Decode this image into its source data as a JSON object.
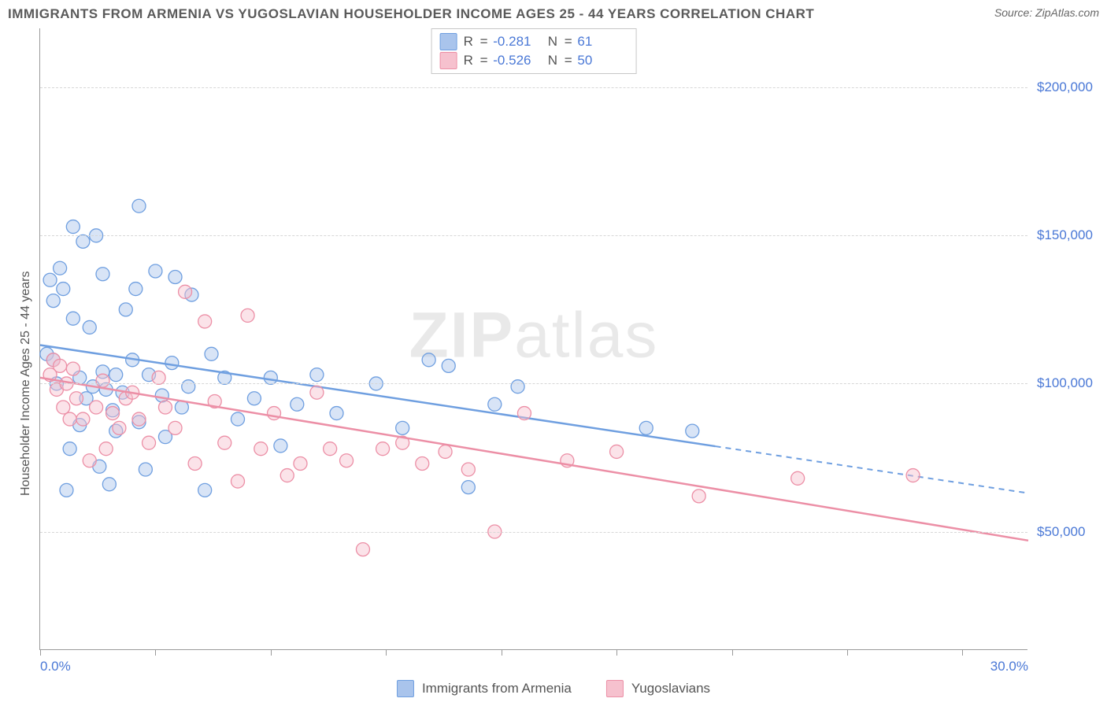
{
  "title": "IMMIGRANTS FROM ARMENIA VS YUGOSLAVIAN HOUSEHOLDER INCOME AGES 25 - 44 YEARS CORRELATION CHART",
  "source": "Source: ZipAtlas.com",
  "watermark": "ZIPatlas",
  "ylabel": "Householder Income Ages 25 - 44 years",
  "chart": {
    "type": "scatter",
    "xlim": [
      0,
      30
    ],
    "ylim": [
      10000,
      220000
    ],
    "x_tick_positions": [
      0,
      3.5,
      7,
      10.5,
      14,
      17.5,
      21,
      24.5,
      28
    ],
    "x_axis_labels": [
      {
        "pos": 0,
        "text": "0.0%"
      },
      {
        "pos": 30,
        "text": "30.0%"
      }
    ],
    "y_gridlines": [
      50000,
      100000,
      150000,
      200000
    ],
    "y_tick_labels": [
      "$50,000",
      "$100,000",
      "$150,000",
      "$200,000"
    ],
    "background_color": "#ffffff",
    "grid_color": "#d7d7d7",
    "axis_color": "#9a9a9a",
    "marker_radius": 8.5,
    "marker_opacity": 0.45,
    "series": [
      {
        "key": "armenia",
        "label": "Immigrants from Armenia",
        "color_fill": "#a9c4ec",
        "color_stroke": "#6f9fe0",
        "R": "-0.281",
        "N": "61",
        "trend": {
          "y_at_x0": 113000,
          "y_at_x30": 63000,
          "solid_until_x": 20.5
        },
        "points": [
          [
            0.2,
            110000
          ],
          [
            0.3,
            135000
          ],
          [
            0.4,
            108000
          ],
          [
            0.4,
            128000
          ],
          [
            0.5,
            100000
          ],
          [
            0.6,
            139000
          ],
          [
            0.7,
            132000
          ],
          [
            0.8,
            64000
          ],
          [
            0.9,
            78000
          ],
          [
            1.0,
            122000
          ],
          [
            1.0,
            153000
          ],
          [
            1.2,
            102000
          ],
          [
            1.2,
            86000
          ],
          [
            1.3,
            148000
          ],
          [
            1.4,
            95000
          ],
          [
            1.5,
            119000
          ],
          [
            1.6,
            99000
          ],
          [
            1.7,
            150000
          ],
          [
            1.8,
            72000
          ],
          [
            1.9,
            104000
          ],
          [
            1.9,
            137000
          ],
          [
            2.0,
            98000
          ],
          [
            2.1,
            66000
          ],
          [
            2.2,
            91000
          ],
          [
            2.3,
            84000
          ],
          [
            2.3,
            103000
          ],
          [
            2.5,
            97000
          ],
          [
            2.6,
            125000
          ],
          [
            2.8,
            108000
          ],
          [
            2.9,
            132000
          ],
          [
            3.0,
            87000
          ],
          [
            3.0,
            160000
          ],
          [
            3.2,
            71000
          ],
          [
            3.3,
            103000
          ],
          [
            3.5,
            138000
          ],
          [
            3.7,
            96000
          ],
          [
            3.8,
            82000
          ],
          [
            4.0,
            107000
          ],
          [
            4.1,
            136000
          ],
          [
            4.3,
            92000
          ],
          [
            4.5,
            99000
          ],
          [
            4.6,
            130000
          ],
          [
            5.0,
            64000
          ],
          [
            5.2,
            110000
          ],
          [
            5.6,
            102000
          ],
          [
            6.0,
            88000
          ],
          [
            6.5,
            95000
          ],
          [
            7.0,
            102000
          ],
          [
            7.3,
            79000
          ],
          [
            7.8,
            93000
          ],
          [
            8.4,
            103000
          ],
          [
            9.0,
            90000
          ],
          [
            10.2,
            100000
          ],
          [
            11.0,
            85000
          ],
          [
            11.8,
            108000
          ],
          [
            12.4,
            106000
          ],
          [
            13.0,
            65000
          ],
          [
            13.8,
            93000
          ],
          [
            14.5,
            99000
          ],
          [
            18.4,
            85000
          ],
          [
            19.8,
            84000
          ]
        ]
      },
      {
        "key": "yugoslavia",
        "label": "Yugoslavians",
        "color_fill": "#f6c1ce",
        "color_stroke": "#ec8fa6",
        "R": "-0.526",
        "N": "50",
        "trend": {
          "y_at_x0": 102000,
          "y_at_x30": 47000,
          "solid_until_x": 30
        },
        "points": [
          [
            0.3,
            103000
          ],
          [
            0.4,
            108000
          ],
          [
            0.5,
            98000
          ],
          [
            0.6,
            106000
          ],
          [
            0.7,
            92000
          ],
          [
            0.8,
            100000
          ],
          [
            0.9,
            88000
          ],
          [
            1.0,
            105000
          ],
          [
            1.1,
            95000
          ],
          [
            1.3,
            88000
          ],
          [
            1.5,
            74000
          ],
          [
            1.7,
            92000
          ],
          [
            1.9,
            101000
          ],
          [
            2.0,
            78000
          ],
          [
            2.2,
            90000
          ],
          [
            2.4,
            85000
          ],
          [
            2.6,
            95000
          ],
          [
            2.8,
            97000
          ],
          [
            3.0,
            88000
          ],
          [
            3.3,
            80000
          ],
          [
            3.6,
            102000
          ],
          [
            3.8,
            92000
          ],
          [
            4.1,
            85000
          ],
          [
            4.4,
            131000
          ],
          [
            4.7,
            73000
          ],
          [
            5.0,
            121000
          ],
          [
            5.3,
            94000
          ],
          [
            5.6,
            80000
          ],
          [
            6.0,
            67000
          ],
          [
            6.3,
            123000
          ],
          [
            6.7,
            78000
          ],
          [
            7.1,
            90000
          ],
          [
            7.5,
            69000
          ],
          [
            7.9,
            73000
          ],
          [
            8.4,
            97000
          ],
          [
            8.8,
            78000
          ],
          [
            9.3,
            74000
          ],
          [
            9.8,
            44000
          ],
          [
            10.4,
            78000
          ],
          [
            11.0,
            80000
          ],
          [
            11.6,
            73000
          ],
          [
            12.3,
            77000
          ],
          [
            13.0,
            71000
          ],
          [
            13.8,
            50000
          ],
          [
            14.7,
            90000
          ],
          [
            16.0,
            74000
          ],
          [
            17.5,
            77000
          ],
          [
            20.0,
            62000
          ],
          [
            23.0,
            68000
          ],
          [
            26.5,
            69000
          ]
        ]
      }
    ]
  },
  "legend_top": {
    "r_label": "R =",
    "n_label": "N ="
  }
}
